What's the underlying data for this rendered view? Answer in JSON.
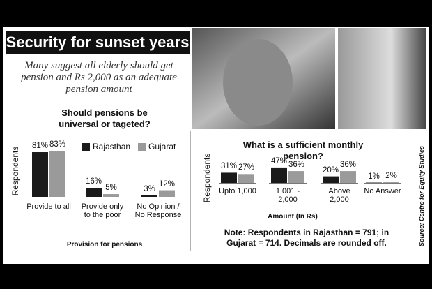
{
  "title": "Security for sunset years",
  "subtitle": "Many suggest all elderly should get pension and Rs 2,000 as an adequate pension amount",
  "note": "Note: Respondents in Rajasthan = 791; in Gujarat = 714. Decimals are rounded off.",
  "source": "Source: Centre for Equity Studies",
  "chart_data": [
    {
      "type": "bar",
      "title": "Should pensions be universal or tageted?",
      "x_label": "Provision for pensions",
      "y_label": "Respondents",
      "categories": [
        "Provide to all",
        "Provide only to the poor",
        "No Opinion / No Response"
      ],
      "series": [
        {
          "name": "Rajasthan",
          "color": "#1a1a1a",
          "values": [
            81,
            16,
            3
          ],
          "value_labels": [
            "81%",
            "16%",
            "3%"
          ]
        },
        {
          "name": "Gujarat",
          "color": "#9a9a9a",
          "values": [
            83,
            5,
            12
          ],
          "value_labels": [
            "83%",
            "5%",
            "12%"
          ]
        }
      ]
    },
    {
      "type": "bar",
      "title": "What is a sufficient monthly pension?",
      "x_label": "Amount (In Rs)",
      "y_label": "Respondents",
      "categories": [
        "Upto 1,000",
        "1,001 - 2,000",
        "Above 2,000",
        "No Answer"
      ],
      "series": [
        {
          "color": "#1a1a1a",
          "values": [
            31,
            47,
            20,
            1
          ],
          "value_labels": [
            "31%",
            "47%",
            "20%",
            "1%"
          ]
        },
        {
          "color": "#9a9a9a",
          "values": [
            27,
            36,
            36,
            2
          ],
          "value_labels": [
            "27%",
            "36%",
            "36%",
            "2%"
          ]
        }
      ]
    }
  ]
}
